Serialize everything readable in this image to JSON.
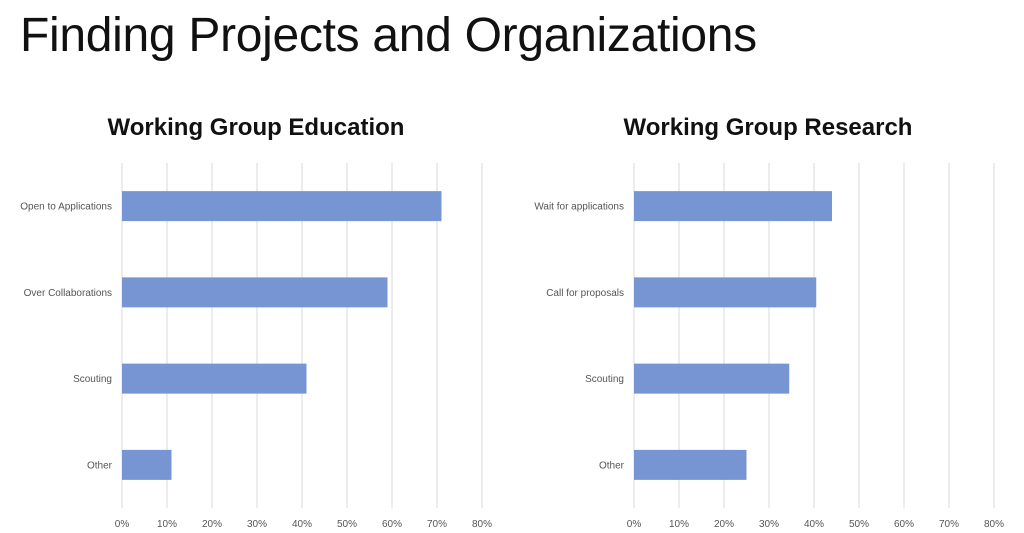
{
  "slide": {
    "title": "Finding Projects and Organizations"
  },
  "chart_data": [
    {
      "type": "bar",
      "orientation": "horizontal",
      "title": "Working Group Education",
      "categories": [
        "Open to Applications",
        "Over Collaborations",
        "Scouting",
        "Other"
      ],
      "values": [
        0.71,
        0.59,
        0.41,
        0.11
      ],
      "xlim": [
        0,
        0.8
      ],
      "x_ticks": [
        "0%",
        "10%",
        "20%",
        "30%",
        "40%",
        "50%",
        "60%",
        "70%",
        "80%"
      ],
      "grid": true,
      "bar_color": "#7895d3"
    },
    {
      "type": "bar",
      "orientation": "horizontal",
      "title": "Working Group Research",
      "categories": [
        "Wait for applications",
        "Call for proposals",
        "Scouting",
        "Other"
      ],
      "values": [
        0.44,
        0.405,
        0.345,
        0.25
      ],
      "xlim": [
        0,
        0.8
      ],
      "x_ticks": [
        "0%",
        "10%",
        "20%",
        "30%",
        "40%",
        "50%",
        "60%",
        "70%",
        "80%"
      ],
      "grid": true,
      "bar_color": "#7895d3"
    }
  ]
}
